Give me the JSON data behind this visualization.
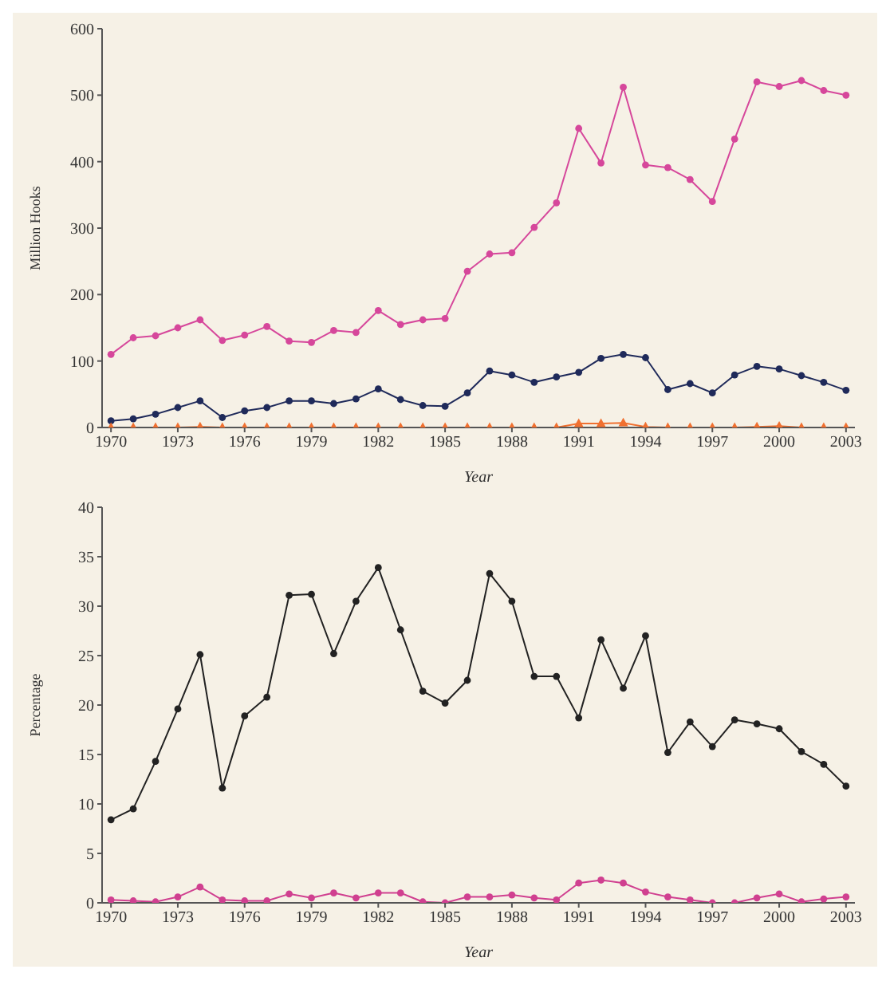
{
  "chart_data": [
    {
      "type": "line",
      "xlabel": "Year",
      "ylabel": "Million Hooks",
      "x": [
        1970,
        1971,
        1972,
        1973,
        1974,
        1975,
        1976,
        1977,
        1978,
        1979,
        1980,
        1981,
        1982,
        1983,
        1984,
        1985,
        1986,
        1987,
        1988,
        1989,
        1990,
        1991,
        1992,
        1993,
        1994,
        1995,
        1996,
        1997,
        1998,
        1999,
        2000,
        2001,
        2002,
        2003
      ],
      "xlim": [
        1969.6,
        2003.4
      ],
      "xticks": [
        1970,
        1973,
        1976,
        1979,
        1982,
        1985,
        1988,
        1991,
        1994,
        1997,
        2000,
        2003
      ],
      "ylim": [
        0,
        600
      ],
      "yticks": [
        0,
        100,
        200,
        300,
        400,
        500,
        600
      ],
      "line_style": "solid",
      "series": [
        {
          "color": "#d6479b",
          "marker": "circle",
          "values": [
            110,
            135,
            138,
            150,
            162,
            131,
            139,
            152,
            130,
            128,
            146,
            143,
            176,
            155,
            162,
            164,
            235,
            261,
            263,
            301,
            338,
            450,
            398,
            512,
            395,
            391,
            373,
            340,
            434,
            520,
            513,
            522,
            507,
            500
          ]
        },
        {
          "color": "#1f2a5a",
          "marker": "circle",
          "values": [
            10,
            13,
            20,
            30,
            40,
            15,
            25,
            30,
            40,
            40,
            36,
            43,
            58,
            42,
            33,
            32,
            52,
            85,
            79,
            68,
            76,
            83,
            104,
            110,
            105,
            57,
            66,
            52,
            79,
            92,
            88,
            78,
            68,
            56
          ]
        },
        {
          "color": "#f07030",
          "marker": "triangle",
          "values": [
            0,
            0,
            0,
            0,
            1,
            0,
            0,
            0,
            0,
            0,
            0,
            0,
            0,
            0,
            0,
            0,
            0,
            0,
            0,
            0,
            0,
            6,
            6,
            7,
            1,
            0,
            0,
            0,
            0,
            1,
            2,
            0,
            0,
            0
          ]
        }
      ]
    },
    {
      "type": "line",
      "xlabel": "Year",
      "ylabel": "Percentage",
      "x": [
        1970,
        1971,
        1972,
        1973,
        1974,
        1975,
        1976,
        1977,
        1978,
        1979,
        1980,
        1981,
        1982,
        1983,
        1984,
        1985,
        1986,
        1987,
        1988,
        1989,
        1990,
        1991,
        1992,
        1993,
        1994,
        1995,
        1996,
        1997,
        1998,
        1999,
        2000,
        2001,
        2002,
        2003
      ],
      "xlim": [
        1969.6,
        2003.4
      ],
      "xticks": [
        1970,
        1973,
        1976,
        1979,
        1982,
        1985,
        1988,
        1991,
        1994,
        1997,
        2000,
        2003
      ],
      "ylim": [
        0,
        40
      ],
      "yticks": [
        0,
        5,
        10,
        15,
        20,
        25,
        30,
        35,
        40
      ],
      "line_style": "solid",
      "series": [
        {
          "color": "#222222",
          "marker": "circle",
          "values": [
            8.4,
            9.5,
            14.3,
            19.6,
            25.1,
            11.6,
            18.9,
            20.8,
            31.1,
            31.2,
            25.2,
            30.5,
            33.9,
            27.6,
            21.4,
            20.2,
            22.5,
            33.3,
            30.5,
            22.9,
            22.9,
            18.7,
            26.6,
            21.7,
            27.0,
            15.2,
            18.3,
            15.8,
            18.5,
            18.1,
            17.6,
            15.3,
            14.0,
            11.8
          ]
        },
        {
          "color": "#d04090",
          "marker": "circle",
          "values": [
            0.3,
            0.2,
            0.1,
            0.6,
            1.6,
            0.3,
            0.2,
            0.2,
            0.9,
            0.5,
            1.0,
            0.5,
            1.0,
            1.0,
            0.1,
            0.0,
            0.6,
            0.6,
            0.8,
            0.5,
            0.3,
            2.0,
            2.3,
            2.0,
            1.1,
            0.6,
            0.3,
            0.0,
            0.0,
            0.5,
            0.9,
            0.1,
            0.4,
            0.6
          ]
        }
      ]
    }
  ]
}
